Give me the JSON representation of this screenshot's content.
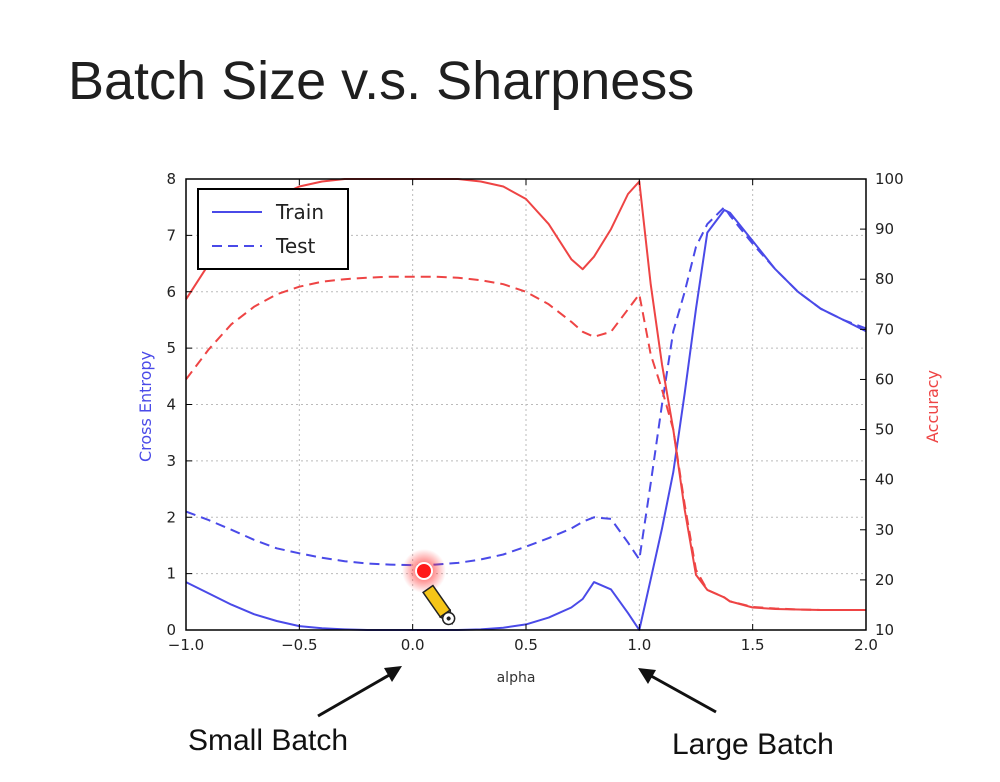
{
  "slide": {
    "title": "Batch Size v.s. Sharpness",
    "captions": {
      "small_batch": "Small Batch",
      "large_batch": "Large Batch"
    }
  },
  "chart_data": {
    "type": "line",
    "title": "",
    "xlabel": "alpha",
    "ylabel_left": "Cross Entropy",
    "ylabel_right": "Accuracy",
    "xlim": [
      -1.0,
      2.0
    ],
    "ylim_left": [
      0,
      8
    ],
    "ylim_right": [
      10,
      100
    ],
    "xticks": [
      "−1.0",
      "−0.5",
      "0.0",
      "0.5",
      "1.0",
      "1.5",
      "2.0"
    ],
    "xtick_values": [
      -1.0,
      -0.5,
      0.0,
      0.5,
      1.0,
      1.5,
      2.0
    ],
    "yticks_left": [
      "0",
      "1",
      "2",
      "3",
      "4",
      "5",
      "6",
      "7",
      "8"
    ],
    "ytick_values_left": [
      0,
      1,
      2,
      3,
      4,
      5,
      6,
      7,
      8
    ],
    "yticks_right": [
      "10",
      "20",
      "30",
      "40",
      "50",
      "60",
      "70",
      "80",
      "90",
      "100"
    ],
    "ytick_values_right": [
      10,
      20,
      30,
      40,
      50,
      60,
      70,
      80,
      90,
      100
    ],
    "grid": true,
    "legend": {
      "position": "top-left",
      "entries": [
        {
          "label": "Train",
          "style": "solid"
        },
        {
          "label": "Test",
          "style": "dashed"
        }
      ]
    },
    "colors": {
      "cross_entropy": "#4a4ae8",
      "accuracy": "#ee4444"
    },
    "series": [
      {
        "name": "Train",
        "axis": "left",
        "metric": "cross_entropy",
        "style": "solid",
        "x": [
          -1.0,
          -0.9,
          -0.8,
          -0.7,
          -0.6,
          -0.5,
          -0.4,
          -0.3,
          -0.2,
          -0.1,
          0.0,
          0.1,
          0.2,
          0.3,
          0.4,
          0.5,
          0.6,
          0.7,
          0.75,
          0.8,
          0.875,
          0.95,
          1.0,
          1.05,
          1.1,
          1.15,
          1.2,
          1.25,
          1.3,
          1.375,
          1.4,
          1.5,
          1.6,
          1.7,
          1.8,
          1.9,
          2.0
        ],
        "y": [
          0.85,
          0.65,
          0.45,
          0.28,
          0.16,
          0.07,
          0.03,
          0.01,
          0.0,
          0.0,
          0.0,
          0.0,
          0.0,
          0.01,
          0.04,
          0.1,
          0.22,
          0.4,
          0.55,
          0.85,
          0.72,
          0.3,
          0.0,
          0.9,
          1.8,
          2.8,
          4.2,
          5.7,
          7.05,
          7.45,
          7.4,
          6.9,
          6.4,
          6.0,
          5.7,
          5.5,
          5.3
        ]
      },
      {
        "name": "Test",
        "axis": "left",
        "metric": "cross_entropy",
        "style": "dashed",
        "x": [
          -1.0,
          -0.9,
          -0.8,
          -0.7,
          -0.6,
          -0.5,
          -0.4,
          -0.3,
          -0.2,
          -0.1,
          0.0,
          0.1,
          0.2,
          0.3,
          0.4,
          0.5,
          0.6,
          0.7,
          0.75,
          0.8,
          0.875,
          0.95,
          1.0,
          1.05,
          1.1,
          1.15,
          1.2,
          1.25,
          1.3,
          1.375,
          1.4,
          1.5,
          1.6,
          1.7,
          1.8,
          1.9,
          2.0
        ],
        "y": [
          2.1,
          1.95,
          1.78,
          1.6,
          1.45,
          1.36,
          1.28,
          1.22,
          1.18,
          1.16,
          1.15,
          1.16,
          1.19,
          1.25,
          1.34,
          1.48,
          1.63,
          1.8,
          1.92,
          2.0,
          1.97,
          1.55,
          1.25,
          2.6,
          4.0,
          5.3,
          6.0,
          6.8,
          7.2,
          7.5,
          7.35,
          6.85,
          6.4,
          6.0,
          5.7,
          5.5,
          5.35
        ]
      },
      {
        "name": "Train",
        "axis": "right",
        "metric": "accuracy",
        "style": "solid",
        "x": [
          -1.0,
          -0.9,
          -0.8,
          -0.7,
          -0.6,
          -0.5,
          -0.4,
          -0.3,
          -0.2,
          -0.1,
          0.0,
          0.1,
          0.2,
          0.3,
          0.4,
          0.5,
          0.6,
          0.7,
          0.75,
          0.8,
          0.875,
          0.95,
          1.0,
          1.05,
          1.1,
          1.15,
          1.2,
          1.25,
          1.3,
          1.375,
          1.4,
          1.5,
          1.6,
          1.7,
          1.8,
          1.9,
          2.0
        ],
        "y": [
          76,
          83,
          89,
          93.5,
          96.5,
          98.5,
          99.5,
          100,
          100,
          100,
          100,
          100,
          100,
          99.5,
          98.5,
          96,
          91,
          84,
          82,
          84.5,
          90,
          97,
          99.5,
          79,
          63,
          50,
          34,
          21,
          18,
          16.5,
          15.7,
          14.5,
          14.2,
          14.1,
          14.0,
          14.0,
          14.0
        ]
      },
      {
        "name": "Test",
        "axis": "right",
        "metric": "accuracy",
        "style": "dashed",
        "x": [
          -1.0,
          -0.9,
          -0.8,
          -0.7,
          -0.6,
          -0.5,
          -0.4,
          -0.3,
          -0.2,
          -0.1,
          0.0,
          0.1,
          0.2,
          0.3,
          0.4,
          0.5,
          0.6,
          0.7,
          0.75,
          0.8,
          0.875,
          0.95,
          1.0,
          1.05,
          1.1,
          1.15,
          1.2,
          1.25,
          1.3,
          1.375,
          1.4,
          1.5,
          1.6,
          1.7,
          1.8,
          1.9,
          2.0
        ],
        "y": [
          60,
          66,
          71,
          74.5,
          77,
          78.5,
          79.5,
          80,
          80.3,
          80.5,
          80.5,
          80.5,
          80.3,
          79.8,
          79,
          77.5,
          75,
          71.5,
          69.5,
          68.5,
          69.5,
          74,
          77,
          65,
          58,
          50,
          35,
          22,
          18,
          16.5,
          15.7,
          14.6,
          14.3,
          14.1,
          14.0,
          14.0,
          14.0
        ]
      }
    ],
    "annotations": [
      {
        "text": "Small Batch",
        "points_to_x": 0.0
      },
      {
        "text": "Large Batch",
        "points_to_x": 1.0
      }
    ]
  }
}
